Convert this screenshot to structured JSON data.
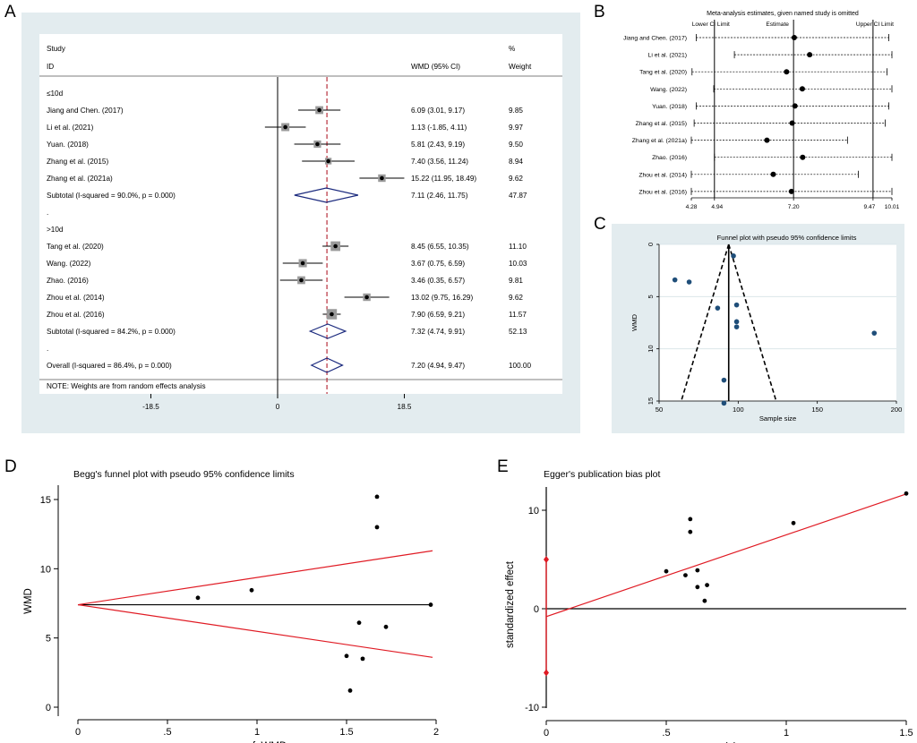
{
  "panel_letters": {
    "a": "A",
    "b": "B",
    "c": "C",
    "d": "D",
    "e": "E"
  },
  "colors": {
    "panel_bg": "#e3ecef",
    "plot_bg": "#ffffff",
    "dash_red": "#b11e2b",
    "diamond": "#1b2a7e",
    "funnel_dot": "#1f4e79",
    "grid": "#d6e2e6",
    "egger_red": "#e01b24"
  },
  "chart_data": [
    {
      "id": "A",
      "type": "forest",
      "header": {
        "study": "Study",
        "id": "ID",
        "wmd": "WMD (95% CI)",
        "pct": "%",
        "weight": "Weight"
      },
      "xticks": [
        -18.5,
        0,
        18.5
      ],
      "xtick_labels": [
        "-18.5",
        "0",
        "18.5"
      ],
      "xrange": [
        -20.6,
        40
      ],
      "ref_line": 7.2,
      "rows": [
        {
          "kind": "group",
          "label": "≤10d"
        },
        {
          "kind": "study",
          "label": "Jiang and Chen. (2017)",
          "est": 6.09,
          "lo": 3.01,
          "hi": 9.17,
          "ci": "6.09 (3.01, 9.17)",
          "weight": "9.85"
        },
        {
          "kind": "study",
          "label": "Li et al. (2021)",
          "est": 1.13,
          "lo": -1.85,
          "hi": 4.11,
          "ci": "1.13 (-1.85, 4.11)",
          "weight": "9.97"
        },
        {
          "kind": "study",
          "label": "Yuan. (2018)",
          "est": 5.81,
          "lo": 2.43,
          "hi": 9.19,
          "ci": "5.81 (2.43, 9.19)",
          "weight": "9.50"
        },
        {
          "kind": "study",
          "label": "Zhang et al. (2015)",
          "est": 7.4,
          "lo": 3.56,
          "hi": 11.24,
          "ci": "7.40 (3.56, 11.24)",
          "weight": "8.94"
        },
        {
          "kind": "study",
          "label": "Zhang et al. (2021a)",
          "est": 15.22,
          "lo": 11.95,
          "hi": 18.49,
          "ci": "15.22 (11.95, 18.49)",
          "weight": "9.62"
        },
        {
          "kind": "subtotal",
          "label": "Subtotal  (I-squared = 90.0%, p = 0.000)",
          "est": 7.11,
          "lo": 2.46,
          "hi": 11.75,
          "ci": "7.11 (2.46, 11.75)",
          "weight": "47.87"
        },
        {
          "kind": "dot",
          "label": "."
        },
        {
          "kind": "group",
          "label": ">10d"
        },
        {
          "kind": "study",
          "label": "Tang et al. (2020)",
          "est": 8.45,
          "lo": 6.55,
          "hi": 10.35,
          "ci": "8.45 (6.55, 10.35)",
          "weight": "11.10"
        },
        {
          "kind": "study",
          "label": "Wang. (2022)",
          "est": 3.67,
          "lo": 0.75,
          "hi": 6.59,
          "ci": "3.67 (0.75, 6.59)",
          "weight": "10.03"
        },
        {
          "kind": "study",
          "label": "Zhao. (2016)",
          "est": 3.46,
          "lo": 0.35,
          "hi": 6.57,
          "ci": "3.46 (0.35, 6.57)",
          "weight": "9.81"
        },
        {
          "kind": "study",
          "label": "Zhou et al. (2014)",
          "est": 13.02,
          "lo": 9.75,
          "hi": 16.29,
          "ci": "13.02 (9.75, 16.29)",
          "weight": "9.62"
        },
        {
          "kind": "study",
          "label": "Zhou et al. (2016)",
          "est": 7.9,
          "lo": 6.59,
          "hi": 9.21,
          "ci": "7.90 (6.59, 9.21)",
          "weight": "11.57"
        },
        {
          "kind": "subtotal",
          "label": "Subtotal  (I-squared = 84.2%, p = 0.000)",
          "est": 7.32,
          "lo": 4.74,
          "hi": 9.91,
          "ci": "7.32 (4.74, 9.91)",
          "weight": "52.13"
        },
        {
          "kind": "dot",
          "label": "."
        },
        {
          "kind": "overall",
          "label": "Overall  (I-squared = 86.4%, p = 0.000)",
          "est": 7.2,
          "lo": 4.94,
          "hi": 9.47,
          "ci": "7.20 (4.94, 9.47)",
          "weight": "100.00"
        }
      ],
      "note": "NOTE: Weights are from random effects analysis"
    },
    {
      "id": "B",
      "type": "influence",
      "title": "Meta-analysis estimates, given named study is omitted",
      "col_labels": {
        "lower": "Lower CI Limit",
        "estimate": "Estimate",
        "upper": "Upper CI Limit"
      },
      "xrange": [
        4.28,
        10.01
      ],
      "vlines": [
        4.94,
        7.2,
        9.47
      ],
      "ticks": [
        4.28,
        4.94,
        7.2,
        9.47,
        10.01
      ],
      "tick_labels": [
        "4.28",
        "4.94",
        "7.20",
        "9.47",
        "10.01"
      ],
      "rows": [
        {
          "label": "Jiang and Chen. (2017)",
          "lo": 4.42,
          "est": 7.22,
          "hi": 9.92
        },
        {
          "label": "Li et al. (2021)",
          "lo": 5.51,
          "est": 7.66,
          "hi": 10.01
        },
        {
          "label": "Tang et al. (2020)",
          "lo": 4.3,
          "est": 7.0,
          "hi": 9.87
        },
        {
          "label": "Wang. (2022)",
          "lo": 4.92,
          "est": 7.45,
          "hi": 10.01
        },
        {
          "label": "Yuan. (2018)",
          "lo": 4.42,
          "est": 7.24,
          "hi": 9.92
        },
        {
          "label": "Zhang et al. (2015)",
          "lo": 4.36,
          "est": 7.16,
          "hi": 9.82
        },
        {
          "label": "Zhang et al. (2021a)",
          "lo": 4.28,
          "est": 6.44,
          "hi": 8.74
        },
        {
          "label": "Zhao. (2016)",
          "lo": 4.94,
          "est": 7.46,
          "hi": 10.01
        },
        {
          "label": "Zhou et al. (2014)",
          "lo": 4.28,
          "est": 6.62,
          "hi": 9.05
        },
        {
          "label": "Zhou et al. (2016)",
          "lo": 4.28,
          "est": 7.14,
          "hi": 10.01
        }
      ]
    },
    {
      "id": "C",
      "type": "scatter",
      "title": "Funnel plot with pseudo 95% confidence limits",
      "xlabel": "Sample size",
      "ylabel": "WMD",
      "xlim": [
        50,
        200
      ],
      "ylim": [
        0,
        15
      ],
      "y_inverted": true,
      "xticks": [
        50,
        100,
        150,
        200
      ],
      "yticks": [
        0,
        5,
        10,
        15
      ],
      "center": 7.2,
      "funnel_apex": {
        "x": 94,
        "y": 0
      },
      "funnel_base": {
        "y": 15,
        "left_x": 64,
        "right_x": 124
      },
      "points": [
        {
          "x": 97,
          "y": 1.1
        },
        {
          "x": 60,
          "y": 3.4
        },
        {
          "x": 69,
          "y": 3.6
        },
        {
          "x": 99,
          "y": 5.8
        },
        {
          "x": 87,
          "y": 6.1
        },
        {
          "x": 99,
          "y": 7.4
        },
        {
          "x": 99,
          "y": 7.9
        },
        {
          "x": 186,
          "y": 8.5
        },
        {
          "x": 91,
          "y": 13.0
        },
        {
          "x": 91,
          "y": 15.2
        }
      ]
    },
    {
      "id": "D",
      "type": "scatter",
      "title": "Begg's funnel plot with pseudo 95% confidence limits",
      "xlabel": "s.e. of: WMD",
      "ylabel": "WMD",
      "xlim": [
        0,
        2
      ],
      "ylim": [
        0,
        15
      ],
      "xticks": [
        0,
        0.5,
        1,
        1.5,
        2
      ],
      "xtick_labels": [
        "0",
        ".5",
        "1",
        "1.5",
        "2"
      ],
      "yticks": [
        0,
        5,
        10,
        15
      ],
      "pooled": 7.4,
      "pseudo_ci": {
        "x_end": 1.98,
        "upper": 11.3,
        "lower": 3.6
      },
      "points": [
        {
          "x": 0.67,
          "y": 7.9
        },
        {
          "x": 0.97,
          "y": 8.45
        },
        {
          "x": 1.5,
          "y": 3.7
        },
        {
          "x": 1.52,
          "y": 1.2
        },
        {
          "x": 1.57,
          "y": 6.1
        },
        {
          "x": 1.59,
          "y": 3.5
        },
        {
          "x": 1.67,
          "y": 15.2
        },
        {
          "x": 1.67,
          "y": 13.0
        },
        {
          "x": 1.72,
          "y": 5.8
        },
        {
          "x": 1.97,
          "y": 7.4
        }
      ]
    },
    {
      "id": "E",
      "type": "scatter",
      "title": "Egger's publication bias plot",
      "xlabel": "precision",
      "ylabel": "standardized effect",
      "xlim": [
        0,
        1.5
      ],
      "ylim": [
        -10,
        12
      ],
      "xticks": [
        0,
        0.5,
        1,
        1.5
      ],
      "xtick_labels": [
        "0",
        ".5",
        "1",
        "1.5"
      ],
      "yticks": [
        -10,
        0,
        10
      ],
      "regression": {
        "intercept": -0.8,
        "slope": 8.3
      },
      "intercept_ci": [
        -6.5,
        5.0
      ],
      "points": [
        {
          "x": 0.5,
          "y": 3.8
        },
        {
          "x": 0.58,
          "y": 3.4
        },
        {
          "x": 0.6,
          "y": 9.1
        },
        {
          "x": 0.6,
          "y": 7.8
        },
        {
          "x": 0.63,
          "y": 3.9
        },
        {
          "x": 0.63,
          "y": 2.2
        },
        {
          "x": 0.66,
          "y": 0.8
        },
        {
          "x": 0.67,
          "y": 2.4
        },
        {
          "x": 1.03,
          "y": 8.7
        },
        {
          "x": 1.5,
          "y": 11.7
        }
      ]
    }
  ]
}
